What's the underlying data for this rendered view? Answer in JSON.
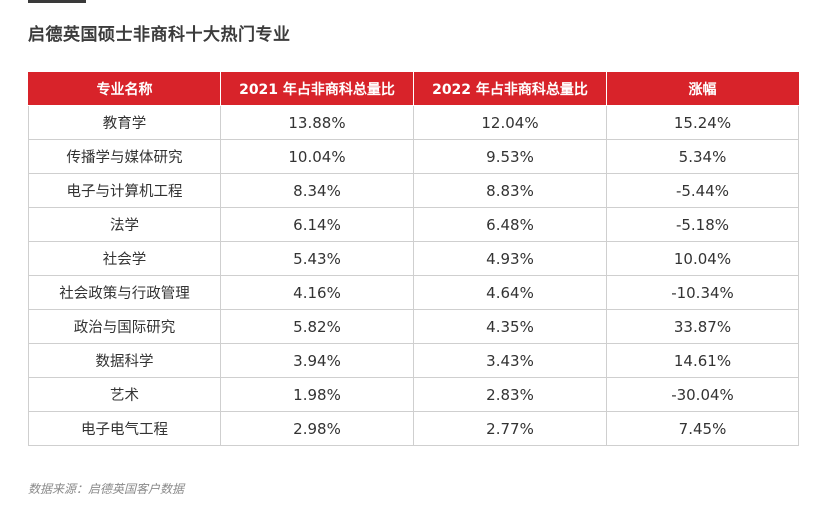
{
  "title": "启德英国硕士非商科十大热门专业",
  "table": {
    "headers": [
      "专业名称",
      "2021 年占非商科总量比",
      "2022 年占非商科总量比",
      "涨幅"
    ],
    "rows": [
      [
        "教育学",
        "13.88%",
        "12.04%",
        "15.24%"
      ],
      [
        "传播学与媒体研究",
        "10.04%",
        "9.53%",
        "5.34%"
      ],
      [
        "电子与计算机工程",
        "8.34%",
        "8.83%",
        "-5.44%"
      ],
      [
        "法学",
        "6.14%",
        "6.48%",
        "-5.18%"
      ],
      [
        "社会学",
        "5.43%",
        "4.93%",
        "10.04%"
      ],
      [
        "社会政策与行政管理",
        "4.16%",
        "4.64%",
        "-10.34%"
      ],
      [
        "政治与国际研究",
        "5.82%",
        "4.35%",
        "33.87%"
      ],
      [
        "数据科学",
        "3.94%",
        "3.43%",
        "14.61%"
      ],
      [
        "艺术",
        "1.98%",
        "2.83%",
        "-30.04%"
      ],
      [
        "电子电气工程",
        "2.98%",
        "2.77%",
        "7.45%"
      ]
    ]
  },
  "source": "数据来源：启德英国客户数据",
  "colors": {
    "header_bg": "#d8232a",
    "header_text": "#ffffff",
    "grid": "#cfcfcf",
    "text": "#333333"
  }
}
